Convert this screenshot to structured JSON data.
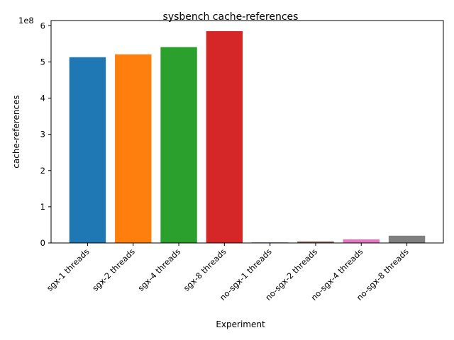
{
  "chart_data": {
    "type": "bar",
    "title": "sysbench cache-references",
    "xlabel": "Experiment",
    "ylabel": "cache-references",
    "offset_label": "1e8",
    "categories": [
      "sgx-1 threads",
      "sgx-2 threads",
      "sgx-4 threads",
      "sgx-8 threads",
      "no-sgx-1 threads",
      "no-sgx-2 threads",
      "no-sgx-4 threads",
      "no-sgx-8 threads"
    ],
    "values": [
      513000000,
      521000000,
      541000000,
      585000000,
      1500000,
      4000000,
      10000000,
      20000000
    ],
    "colors": [
      "#1f77b4",
      "#ff7f0e",
      "#2ca02c",
      "#d62728",
      "#9467bd",
      "#8c564b",
      "#e377c2",
      "#7f7f7f"
    ],
    "yticks": [
      "0",
      "1",
      "2",
      "3",
      "4",
      "5",
      "6"
    ],
    "ylim": [
      0,
      614250000
    ],
    "grid": false
  }
}
